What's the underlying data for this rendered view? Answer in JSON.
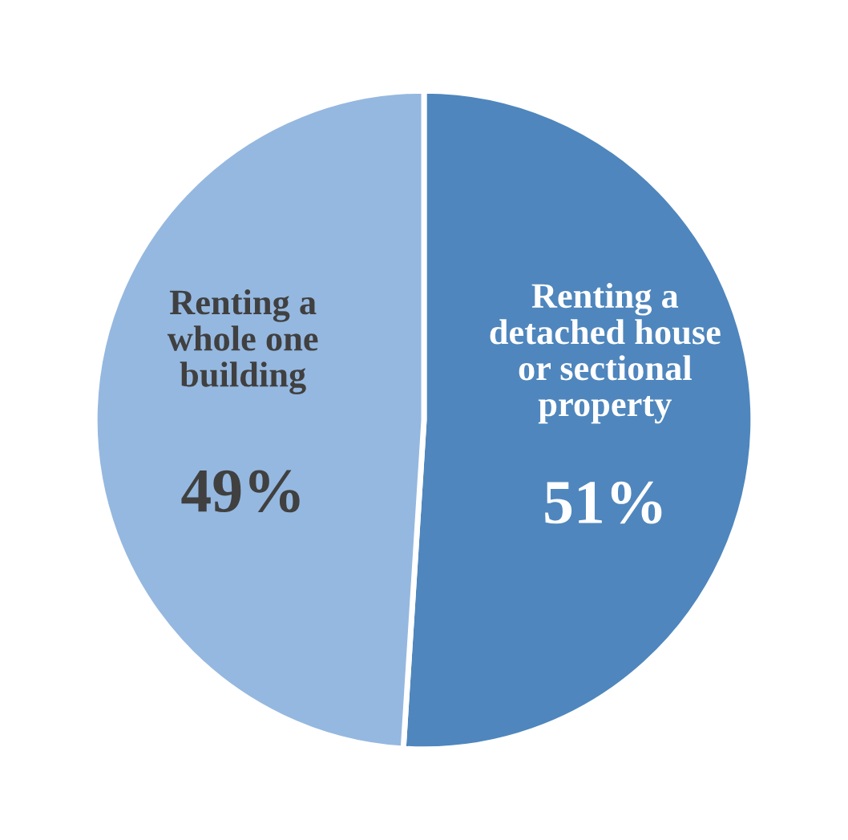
{
  "chart_data": {
    "type": "pie",
    "categories": [
      "Renting a\ndetached house\nor sectional\nproperty",
      "Renting a\nwhole one\nbuilding"
    ],
    "values": [
      51,
      49
    ],
    "value_labels": [
      "51%",
      "49%"
    ],
    "colors": [
      "#4f86bd",
      "#95b8e0"
    ],
    "legend": false
  }
}
